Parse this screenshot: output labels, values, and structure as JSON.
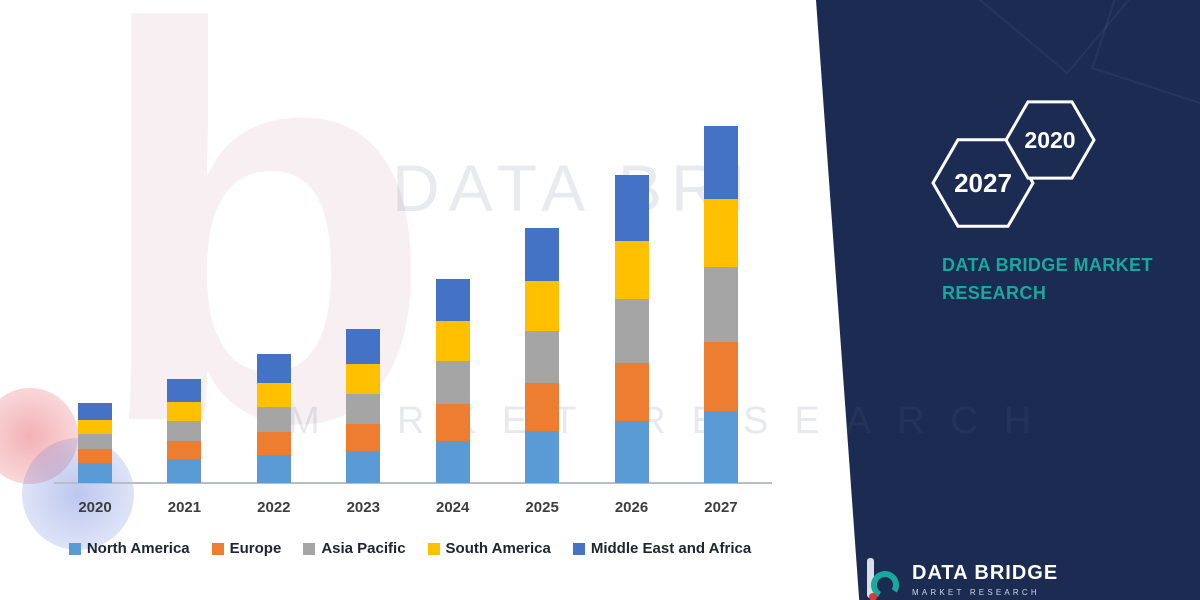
{
  "colors": {
    "panel_navy": "#1b2b52",
    "teal": "#17a99f",
    "axis_label": "#3d3d3d",
    "legend_text": "#1f2430",
    "axis_line": "#b9bdc5"
  },
  "watermarks": {
    "logo_glyph": "b",
    "line1": "DATA BRI",
    "line2": "MARKET RESEARCH"
  },
  "brand": {
    "hexagon_left": "2027",
    "hexagon_right": "2020",
    "panel_title_line1": "DATA BRIDGE MARKET",
    "panel_title_line2": "RESEARCH",
    "footer_logo_text": "DATA BRIDGE",
    "footer_logo_subtext": "MARKET RESEARCH"
  },
  "chart_data": {
    "type": "bar",
    "stacked": true,
    "title": "",
    "xlabel": "",
    "ylabel": "",
    "grid": false,
    "legend_position": "bottom",
    "ylim": [
      0,
      370
    ],
    "categories": [
      "2020",
      "2021",
      "2022",
      "2023",
      "2024",
      "2025",
      "2026",
      "2027"
    ],
    "series": [
      {
        "name": "North America",
        "color": "#5B9BD5",
        "values": [
          20,
          24,
          28,
          32,
          42,
          52,
          62,
          72
        ]
      },
      {
        "name": "Europe",
        "color": "#ED7D31",
        "values": [
          14,
          18,
          23,
          27,
          37,
          47,
          57,
          68
        ]
      },
      {
        "name": "Asia Pacific",
        "color": "#A5A5A5",
        "values": [
          15,
          20,
          25,
          30,
          42,
          52,
          64,
          75
        ]
      },
      {
        "name": "South America",
        "color": "#FFC000",
        "values": [
          14,
          19,
          24,
          29,
          40,
          50,
          58,
          68
        ]
      },
      {
        "name": "Middle East and Africa",
        "color": "#4472C4",
        "values": [
          17,
          22,
          28,
          35,
          42,
          53,
          65,
          72
        ]
      }
    ]
  }
}
